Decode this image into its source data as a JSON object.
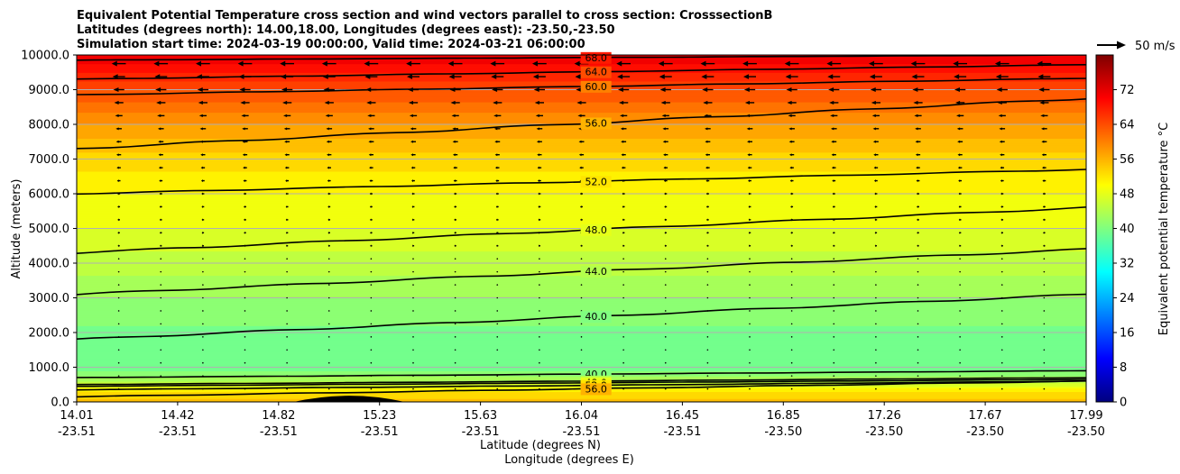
{
  "colors": {
    "contour_line": "#000000",
    "grid": "#b0b0b0",
    "vector": "#000000",
    "terrain": "#000000"
  },
  "chart_data": {
    "type": "heatmap",
    "title_lines": [
      "Equivalent Potential Temperature cross section and wind vectors parallel to cross section: CrosssectionB",
      "Latitudes (degrees north): 14.00,18.00, Longitudes (degrees east): -23.50,-23.50",
      "Simulation start time: 2024-03-19 00:00:00, Valid time: 2024-03-21 06:00:00"
    ],
    "ylabel": "Altitude (meters)",
    "xlabel_lat": "Latitude (degrees N)",
    "xlabel_lon": "Longitude (degrees E)",
    "ylim": [
      0,
      10000
    ],
    "y_ticks": [
      "0.0",
      "1000.0",
      "2000.0",
      "3000.0",
      "4000.0",
      "5000.0",
      "6000.0",
      "7000.0",
      "8000.0",
      "9000.0",
      "10000.0"
    ],
    "x_ticks": [
      {
        "lat": "14.01",
        "lon": "-23.51"
      },
      {
        "lat": "14.42",
        "lon": "-23.51"
      },
      {
        "lat": "14.82",
        "lon": "-23.51"
      },
      {
        "lat": "15.23",
        "lon": "-23.51"
      },
      {
        "lat": "15.63",
        "lon": "-23.51"
      },
      {
        "lat": "16.04",
        "lon": "-23.51"
      },
      {
        "lat": "16.45",
        "lon": "-23.51"
      },
      {
        "lat": "16.85",
        "lon": "-23.50"
      },
      {
        "lat": "17.26",
        "lon": "-23.50"
      },
      {
        "lat": "17.67",
        "lon": "-23.50"
      },
      {
        "lat": "17.99",
        "lon": "-23.50"
      }
    ],
    "grid": true,
    "colorbar": {
      "label": "Equivalent potential temperature $^\\circ$C",
      "label_display": "Equivalent potential temperature °C",
      "range": [
        0,
        80
      ],
      "ticks": [
        "0",
        "8",
        "16",
        "24",
        "32",
        "40",
        "48",
        "56",
        "64",
        "72"
      ],
      "colormap": "jet"
    },
    "quiver_key": {
      "label": "50 m/s",
      "value": 50
    },
    "temperature_profile_by_altitude": {
      "altitude_m": [
        0,
        300,
        600,
        1000,
        2000,
        3000,
        4000,
        5000,
        6000,
        7000,
        8000,
        9000,
        10000
      ],
      "theta_e_C": [
        55,
        52,
        44,
        39,
        39.5,
        42,
        45,
        48,
        50,
        53,
        58,
        64,
        72
      ]
    },
    "contours": [
      {
        "label": "68.0",
        "level": 68,
        "altitude_m": [
          9850,
          10000
        ]
      },
      {
        "label": "64.0",
        "level": 64,
        "altitude_m": [
          9300,
          9720
        ]
      },
      {
        "label": "60.0",
        "level": 60,
        "altitude_m": [
          8850,
          9330
        ]
      },
      {
        "label": "56.0",
        "level": 56,
        "altitude_m": [
          7300,
          8750
        ]
      },
      {
        "label": "52.0",
        "level": 52,
        "altitude_m": [
          6000,
          6700
        ]
      },
      {
        "label": "48.0",
        "level": 48,
        "altitude_m": [
          4300,
          5600
        ]
      },
      {
        "label": "44.0",
        "level": 44,
        "altitude_m": [
          3100,
          4400
        ]
      },
      {
        "label": "40.0",
        "level": 40,
        "altitude_m": [
          1800,
          3100
        ]
      },
      {
        "label": "40.0",
        "level": 40,
        "altitude_m": [
          700,
          900
        ]
      },
      {
        "label": "44.0",
        "level": 44,
        "altitude_m": [
          500,
          700
        ]
      },
      {
        "label": "48.0",
        "level": 48,
        "altitude_m": [
          450,
          650
        ]
      },
      {
        "label": "52.0",
        "level": 52,
        "altitude_m": [
          350,
          600
        ]
      },
      {
        "label": "56.0",
        "level": 56,
        "altitude_m": [
          150,
          600
        ]
      }
    ],
    "wind_vectors": {
      "direction": "toward south (leftward)",
      "max_speed_m_s": 50,
      "speed_by_altitude": {
        "altitude_m": [
          0,
          2000,
          4000,
          6000,
          8000,
          9000,
          10000
        ],
        "speed_m_s": [
          0.5,
          1.5,
          2.5,
          4,
          9,
          16,
          22
        ]
      }
    }
  }
}
